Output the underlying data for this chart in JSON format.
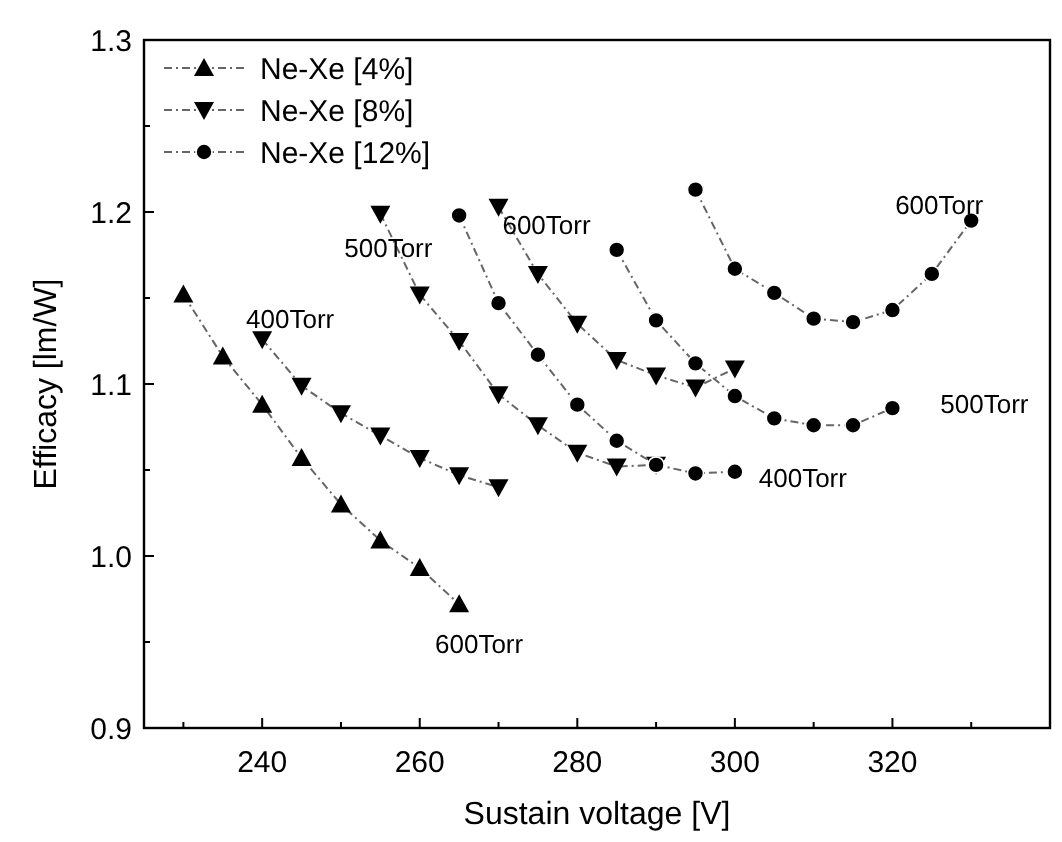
{
  "chart_data": {
    "type": "line",
    "xlabel": "Sustain voltage [V]",
    "ylabel": "Efficacy [lm/W]",
    "xlim": [
      225,
      340
    ],
    "ylim": [
      0.9,
      1.3
    ],
    "xticks": [
      {
        "value": 230,
        "label": null
      },
      240,
      {
        "value": 250,
        "label": null
      },
      260,
      {
        "value": 270,
        "label": null
      },
      280,
      {
        "value": 290,
        "label": null
      },
      300,
      {
        "value": 310,
        "label": null
      },
      320,
      {
        "value": 330,
        "label": null
      }
    ],
    "yticks": [
      0.9,
      {
        "value": 0.95,
        "label": null
      },
      {
        "value": 1.0,
        "label": "1.0"
      },
      {
        "value": 1.05,
        "label": null
      },
      1.1,
      {
        "value": 1.15,
        "label": null
      },
      1.2,
      {
        "value": 1.25,
        "label": null
      },
      1.3
    ],
    "grid": false,
    "legend": "top left",
    "line_style": "dashed",
    "series": [
      {
        "name": "Ne-Xe   [4%]",
        "color": "#000000",
        "marker": "triangle",
        "x": [
          230,
          235,
          240,
          245,
          250,
          255,
          260,
          265
        ],
        "values": [
          1.152,
          1.116,
          1.088,
          1.057,
          1.03,
          1.009,
          0.993,
          0.972
        ]
      },
      {
        "name": "Ne-Xe   [8%]",
        "color": "#000000",
        "marker": "triangle-down",
        "x": [
          240,
          245,
          250,
          255,
          260,
          265,
          270
        ],
        "values": [
          1.126,
          1.099,
          1.083,
          1.07,
          1.057,
          1.047,
          1.04
        ]
      },
      {
        "color": "#000000",
        "marker": "triangle-down",
        "x": [
          255,
          260,
          265,
          270,
          275,
          280,
          285,
          290
        ],
        "values": [
          1.199,
          1.152,
          1.125,
          1.094,
          1.076,
          1.06,
          1.052,
          1.053
        ]
      },
      {
        "color": "#000000",
        "marker": "triangle-down",
        "x": [
          270,
          275,
          280,
          285,
          290,
          295,
          300
        ],
        "values": [
          1.203,
          1.164,
          1.135,
          1.114,
          1.105,
          1.098,
          1.109
        ]
      },
      {
        "name": "Ne-Xe [12%]",
        "color": "#000000",
        "marker": "circle",
        "x": [
          265,
          270,
          275,
          280,
          285,
          290,
          295,
          300
        ],
        "values": [
          1.198,
          1.147,
          1.117,
          1.088,
          1.067,
          1.053,
          1.048,
          1.049
        ]
      },
      {
        "color": "#000000",
        "marker": "circle",
        "x": [
          285,
          290,
          295,
          300,
          305,
          310,
          315,
          320
        ],
        "values": [
          1.178,
          1.137,
          1.112,
          1.093,
          1.08,
          1.076,
          1.076,
          1.086
        ]
      },
      {
        "color": "#000000",
        "marker": "circle",
        "x": [
          295,
          300,
          305,
          310,
          315,
          320,
          325,
          330
        ],
        "values": [
          1.213,
          1.167,
          1.153,
          1.138,
          1.136,
          1.143,
          1.164,
          1.195
        ]
      }
    ],
    "annotations": [
      {
        "text": "400Torr",
        "x": 240,
        "y": 1.126
      },
      {
        "text": "500Torr",
        "x": 255,
        "y": 1.199
      },
      {
        "text": "600Torr",
        "x": 270,
        "y": 1.203
      },
      {
        "text": "600Torr",
        "x": 265,
        "y": 0.972
      },
      {
        "text": "400Torr",
        "x": 300,
        "y": 1.049
      },
      {
        "text": "500Torr",
        "x": 320,
        "y": 1.086
      },
      {
        "text": "600Torr",
        "x": 330,
        "y": 1.195
      }
    ]
  }
}
